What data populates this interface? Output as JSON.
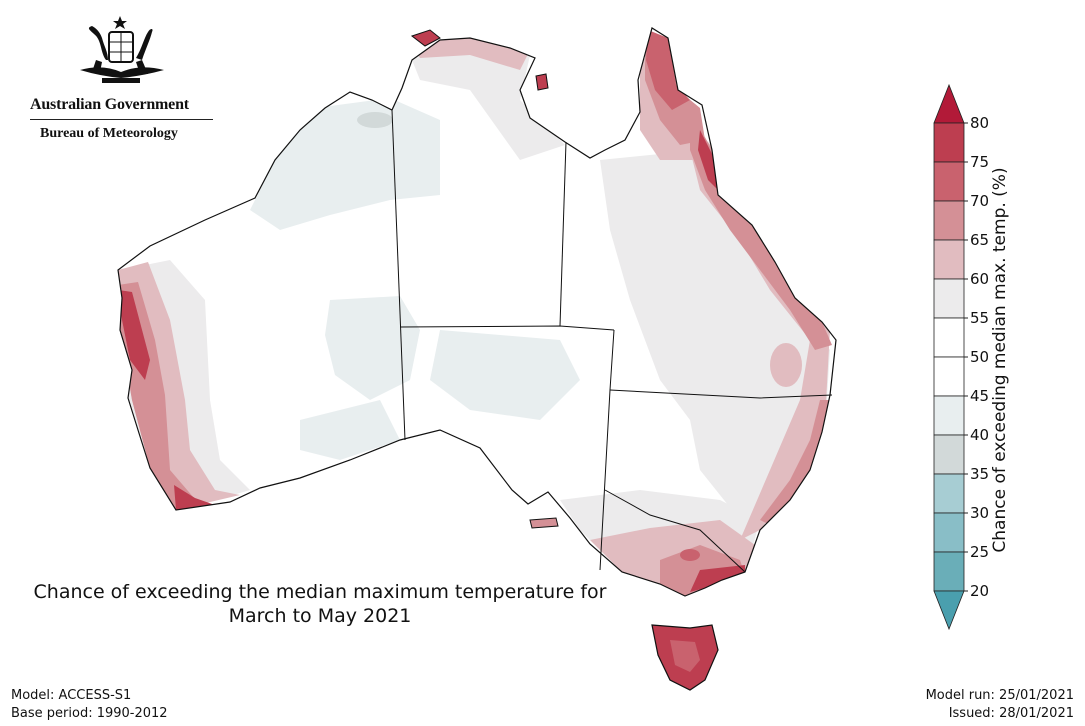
{
  "header": {
    "government": "Australian Government",
    "agency": "Bureau of Meteorology"
  },
  "map": {
    "title_line1": "Chance of exceeding the median maximum temperature for",
    "title_line2": "March to May 2021",
    "region": "Australia"
  },
  "colorbar": {
    "label": "Chance of exceeding median max. temp. (%)",
    "ticks": [
      "20",
      "25",
      "30",
      "35",
      "40",
      "45",
      "50",
      "55",
      "60",
      "65",
      "70",
      "75",
      "80"
    ],
    "bands": [
      {
        "range": "20-25",
        "color": "#6aaeb8"
      },
      {
        "range": "25-30",
        "color": "#89bec7"
      },
      {
        "range": "30-35",
        "color": "#a7cdd3"
      },
      {
        "range": "35-40",
        "color": "#d2d9d9"
      },
      {
        "range": "40-45",
        "color": "#e8eeef"
      },
      {
        "range": "45-50",
        "color": "#ffffff"
      },
      {
        "range": "50-55",
        "color": "#ffffff"
      },
      {
        "range": "55-60",
        "color": "#ecebec"
      },
      {
        "range": "60-65",
        "color": "#e1bcc0"
      },
      {
        "range": "65-70",
        "color": "#d49096"
      },
      {
        "range": "70-75",
        "color": "#c9626e"
      },
      {
        "range": "75-80",
        "color": "#bd3e50"
      }
    ],
    "low_extend_color": "#4a9fae",
    "high_extend_color": "#b21a38"
  },
  "footer": {
    "model": "Model: ACCESS-S1",
    "base_period": "Base period: 1990-2012",
    "model_run": "Model run: 25/01/2021",
    "issued": "Issued: 28/01/2021"
  }
}
